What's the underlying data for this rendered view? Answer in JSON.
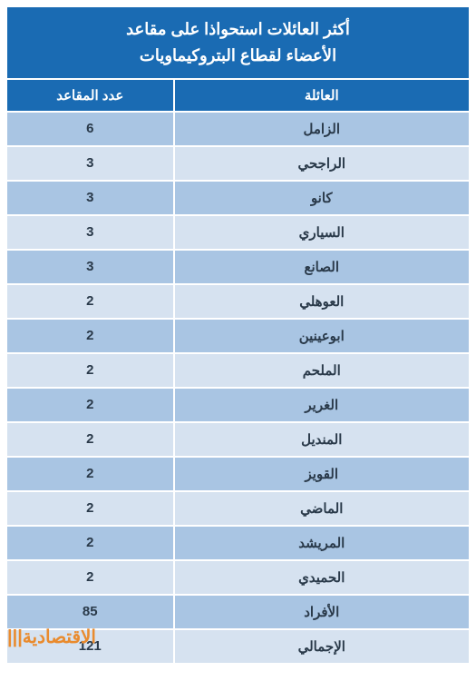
{
  "title_line1": "أكثر العائلات استحواذا على مقاعد",
  "title_line2": "الأعضاء لقطاع البتروكيماويات",
  "columns": {
    "family": "العائلة",
    "seats": "عدد المقاعد"
  },
  "rows": [
    {
      "family": "الزامل",
      "seats": "6"
    },
    {
      "family": "الراجحي",
      "seats": "3"
    },
    {
      "family": "كانو",
      "seats": "3"
    },
    {
      "family": "السياري",
      "seats": "3"
    },
    {
      "family": "الصانع",
      "seats": "3"
    },
    {
      "family": "العوهلي",
      "seats": "2"
    },
    {
      "family": "ابوعينين",
      "seats": "2"
    },
    {
      "family": "الملحم",
      "seats": "2"
    },
    {
      "family": "الغرير",
      "seats": "2"
    },
    {
      "family": "المنديل",
      "seats": "2"
    },
    {
      "family": "القويز",
      "seats": "2"
    },
    {
      "family": "الماضي",
      "seats": "2"
    },
    {
      "family": "المريشد",
      "seats": "2"
    },
    {
      "family": "الحميدي",
      "seats": "2"
    },
    {
      "family": "الأفراد",
      "seats": "85"
    },
    {
      "family": "الإجمالي",
      "seats": "121"
    }
  ],
  "watermark": "الاقتصادية",
  "colors": {
    "header_bg": "#1a6bb3",
    "header_fg": "#ffffff",
    "row_even_bg": "#a9c5e3",
    "row_odd_bg": "#d6e2f0",
    "text": "#2a3a4a",
    "watermark": "#e98b2e"
  },
  "layout": {
    "col_family_width_pct": 64,
    "col_seats_width_pct": 36,
    "title_fontsize": 18,
    "header_fontsize": 15,
    "cell_fontsize": 15
  }
}
